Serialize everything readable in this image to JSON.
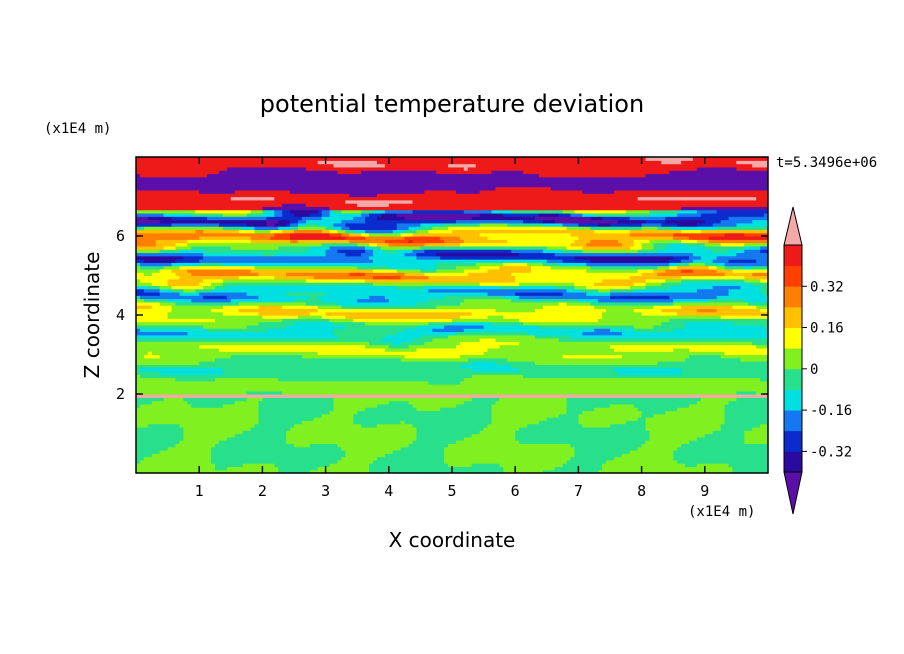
{
  "chart_data": {
    "type": "heatmap",
    "title": "potential temperature deviation",
    "xlabel": "X coordinate",
    "ylabel": "Z coordinate",
    "x_unit": "(x1E4 m)",
    "y_unit": "(x1E4 m)",
    "time_label": "t=5.3496e+06",
    "xlim": [
      0,
      10
    ],
    "ylim": [
      0,
      8
    ],
    "x_ticks": [
      1,
      2,
      3,
      4,
      5,
      6,
      7,
      8,
      9
    ],
    "y_ticks": [
      2,
      4,
      6
    ],
    "colorbar": {
      "levels": [
        -0.48,
        -0.4,
        -0.32,
        -0.24,
        -0.16,
        -0.08,
        0,
        0.08,
        0.16,
        0.24,
        0.32,
        0.4,
        0.48
      ],
      "tick_labels": [
        "0.32",
        "0.16",
        "0",
        "-0.16",
        "-0.32"
      ],
      "tick_values": [
        0.32,
        0.16,
        0,
        -0.16,
        -0.32
      ],
      "colors_low_to_high": [
        "#5a10a8",
        "#2c0aa0",
        "#0a2ccc",
        "#1478f0",
        "#00e0e0",
        "#28e08c",
        "#80f020",
        "#ffff00",
        "#ffc000",
        "#ff8000",
        "#ff4000",
        "#ee1a1a",
        "#f4a8a8"
      ],
      "extend": "both"
    },
    "structure": {
      "lower_region_z": [
        0,
        2
      ],
      "lower_region_range": [
        -0.1,
        0.06
      ],
      "turbulent_band_z": [
        2,
        8
      ],
      "upper_region_z": [
        6.5,
        8
      ],
      "upper_region_range": [
        -0.5,
        0.5
      ]
    }
  }
}
